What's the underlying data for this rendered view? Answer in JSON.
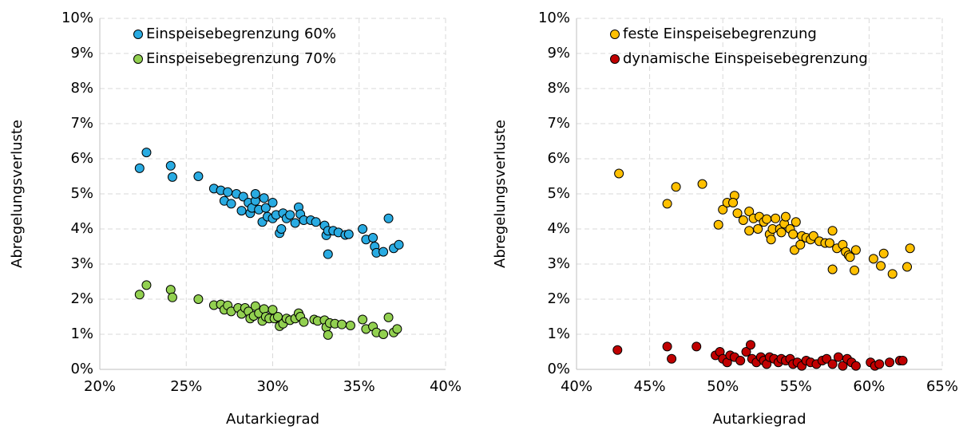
{
  "chart_data": [
    {
      "type": "scatter",
      "xlabel": "Autarkiegrad",
      "ylabel": "Abregelungsverluste",
      "xlim": [
        20,
        40
      ],
      "xticks": [
        {
          "value": 20,
          "label": "20%"
        },
        {
          "value": 25,
          "label": "25%"
        },
        {
          "value": 30,
          "label": "30%"
        },
        {
          "value": 35,
          "label": "35%"
        },
        {
          "value": 40,
          "label": "40%"
        }
      ],
      "ylim": [
        0,
        10
      ],
      "yticks": [
        {
          "value": 0,
          "label": "0%"
        },
        {
          "value": 1,
          "label": "1%"
        },
        {
          "value": 2,
          "label": "2%"
        },
        {
          "value": 3,
          "label": "3%"
        },
        {
          "value": 4,
          "label": "4%"
        },
        {
          "value": 5,
          "label": "5%"
        },
        {
          "value": 6,
          "label": "6%"
        },
        {
          "value": 7,
          "label": "7%"
        },
        {
          "value": 8,
          "label": "8%"
        },
        {
          "value": 9,
          "label": "9%"
        },
        {
          "value": 10,
          "label": "10%"
        }
      ],
      "grid": true,
      "legend": "upper left",
      "series": [
        {
          "name": "Einspeisebegrenzung 60%",
          "color": "#29abe2",
          "x": [
            22.3,
            22.7,
            24.1,
            24.2,
            25.7,
            26.6,
            27.0,
            27.2,
            27.4,
            27.6,
            27.9,
            28.2,
            28.3,
            28.6,
            28.7,
            28.8,
            29.0,
            29.0,
            29.2,
            29.4,
            29.5,
            29.6,
            29.7,
            30.0,
            30.0,
            30.2,
            30.4,
            30.5,
            30.6,
            30.8,
            31.0,
            31.3,
            31.5,
            31.6,
            31.8,
            32.2,
            32.5,
            33.0,
            33.1,
            33.2,
            33.2,
            33.5,
            33.8,
            34.2,
            34.4,
            35.2,
            35.4,
            35.8,
            35.9,
            36.0,
            36.4,
            36.7,
            37.0,
            37.3
          ],
          "values": [
            5.73,
            6.18,
            5.8,
            5.48,
            5.5,
            5.15,
            5.1,
            4.8,
            5.05,
            4.72,
            5.0,
            4.52,
            4.92,
            4.75,
            4.45,
            4.6,
            4.8,
            5.0,
            4.55,
            4.2,
            4.88,
            4.6,
            4.35,
            4.75,
            4.3,
            4.4,
            3.88,
            4.0,
            4.45,
            4.3,
            4.4,
            4.17,
            4.62,
            4.42,
            4.25,
            4.25,
            4.2,
            4.1,
            3.82,
            3.95,
            3.28,
            3.95,
            3.9,
            3.83,
            3.85,
            4.0,
            3.7,
            3.75,
            3.5,
            3.32,
            3.35,
            4.3,
            3.45,
            3.55
          ]
        },
        {
          "name": "Einspeisebegrenzung 70%",
          "color": "#92d050",
          "x": [
            22.3,
            22.7,
            24.1,
            24.2,
            25.7,
            26.6,
            27.0,
            27.2,
            27.4,
            27.6,
            28.0,
            28.2,
            28.4,
            28.6,
            28.7,
            28.9,
            29.0,
            29.2,
            29.4,
            29.5,
            29.6,
            29.8,
            30.0,
            30.1,
            30.3,
            30.4,
            30.6,
            30.8,
            31.0,
            31.3,
            31.5,
            31.6,
            31.8,
            32.4,
            32.6,
            33.0,
            33.1,
            33.3,
            33.2,
            33.6,
            34.0,
            34.5,
            35.2,
            35.4,
            35.8,
            36.0,
            36.4,
            36.7,
            37.0,
            37.2
          ],
          "values": [
            2.13,
            2.4,
            2.27,
            2.05,
            2.0,
            1.83,
            1.85,
            1.7,
            1.82,
            1.65,
            1.75,
            1.58,
            1.75,
            1.65,
            1.45,
            1.52,
            1.8,
            1.6,
            1.38,
            1.72,
            1.5,
            1.45,
            1.7,
            1.45,
            1.5,
            1.23,
            1.3,
            1.45,
            1.4,
            1.45,
            1.6,
            1.5,
            1.35,
            1.42,
            1.38,
            1.4,
            1.2,
            1.32,
            0.98,
            1.3,
            1.28,
            1.25,
            1.42,
            1.15,
            1.22,
            1.05,
            1.0,
            1.48,
            1.05,
            1.15
          ]
        }
      ]
    },
    {
      "type": "scatter",
      "xlabel": "Autarkiegrad",
      "ylabel": "Abregelungsverluste",
      "xlim": [
        40,
        65
      ],
      "xticks": [
        {
          "value": 40,
          "label": "40%"
        },
        {
          "value": 45,
          "label": "45%"
        },
        {
          "value": 50,
          "label": "50%"
        },
        {
          "value": 55,
          "label": "55%"
        },
        {
          "value": 60,
          "label": "60%"
        },
        {
          "value": 65,
          "label": "65%"
        }
      ],
      "ylim": [
        0,
        10
      ],
      "yticks": [
        {
          "value": 0,
          "label": "0%"
        },
        {
          "value": 1,
          "label": "1%"
        },
        {
          "value": 2,
          "label": "2%"
        },
        {
          "value": 3,
          "label": "3%"
        },
        {
          "value": 4,
          "label": "4%"
        },
        {
          "value": 5,
          "label": "5%"
        },
        {
          "value": 6,
          "label": "6%"
        },
        {
          "value": 7,
          "label": "7%"
        },
        {
          "value": 8,
          "label": "8%"
        },
        {
          "value": 9,
          "label": "9%"
        },
        {
          "value": 10,
          "label": "10%"
        }
      ],
      "grid": true,
      "legend": "upper left",
      "series": [
        {
          "name": "feste Einspeisebegrenzung",
          "color": "#ffc000",
          "x": [
            42.9,
            46.2,
            46.8,
            48.6,
            49.7,
            50.0,
            50.3,
            50.8,
            50.7,
            51.0,
            51.4,
            51.8,
            51.8,
            52.1,
            52.4,
            52.5,
            52.8,
            53.0,
            53.2,
            53.3,
            53.4,
            53.6,
            53.9,
            54.0,
            54.2,
            54.3,
            54.6,
            54.8,
            54.9,
            55.0,
            55.3,
            55.4,
            55.7,
            56.0,
            56.2,
            56.6,
            57.0,
            57.3,
            57.5,
            57.5,
            57.8,
            58.2,
            58.4,
            58.6,
            58.7,
            59.1,
            59.0,
            60.3,
            60.8,
            61.0,
            61.6,
            62.6,
            62.8
          ],
          "values": [
            5.58,
            4.72,
            5.2,
            5.28,
            4.12,
            4.55,
            4.75,
            4.95,
            4.75,
            4.45,
            4.25,
            3.95,
            4.5,
            4.3,
            4.0,
            4.35,
            4.2,
            4.28,
            3.85,
            3.7,
            4.0,
            4.3,
            4.0,
            3.9,
            4.15,
            4.35,
            4.0,
            3.85,
            3.4,
            4.2,
            3.55,
            3.8,
            3.75,
            3.7,
            3.8,
            3.65,
            3.6,
            3.6,
            2.85,
            3.95,
            3.45,
            3.55,
            3.35,
            3.25,
            3.2,
            3.4,
            2.82,
            3.15,
            2.95,
            3.3,
            2.72,
            2.92,
            3.45
          ]
        },
        {
          "name": "dynamische Einspeisebegrenzung",
          "color": "#c00000",
          "x": [
            42.8,
            46.2,
            46.5,
            48.2,
            49.5,
            49.8,
            50.0,
            50.3,
            50.5,
            50.8,
            51.2,
            51.6,
            51.9,
            52.0,
            52.3,
            52.6,
            52.8,
            53.0,
            53.2,
            53.5,
            53.8,
            54.0,
            54.3,
            54.6,
            54.8,
            55.1,
            55.4,
            55.7,
            56.0,
            56.4,
            56.8,
            57.1,
            57.5,
            57.9,
            58.2,
            58.5,
            58.8,
            59.1,
            60.1,
            60.4,
            60.7,
            61.4,
            62.1,
            62.3
          ],
          "values": [
            0.55,
            0.65,
            0.3,
            0.65,
            0.4,
            0.5,
            0.3,
            0.2,
            0.4,
            0.35,
            0.25,
            0.5,
            0.7,
            0.3,
            0.2,
            0.35,
            0.25,
            0.15,
            0.35,
            0.3,
            0.2,
            0.3,
            0.25,
            0.3,
            0.15,
            0.2,
            0.1,
            0.25,
            0.2,
            0.15,
            0.25,
            0.3,
            0.15,
            0.35,
            0.1,
            0.3,
            0.2,
            0.1,
            0.2,
            0.1,
            0.15,
            0.2,
            0.25,
            0.25
          ]
        }
      ]
    }
  ]
}
